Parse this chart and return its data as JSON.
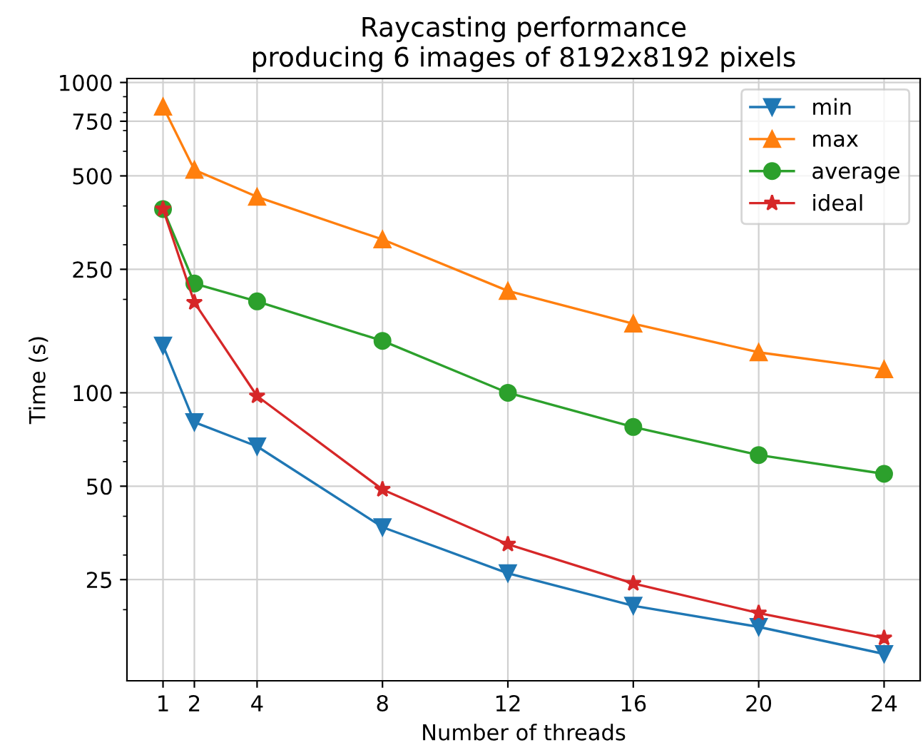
{
  "chart_data": {
    "type": "line",
    "title": "Raycasting performance\nproducing 6 images of 8192x8192 pixels",
    "xlabel": "Number of threads",
    "ylabel": "Time (s)",
    "x": [
      1,
      2,
      4,
      8,
      12,
      16,
      20,
      24
    ],
    "series": [
      {
        "name": "min",
        "color": "#1f77b4",
        "marker": "triangle_down",
        "values": [
          142,
          80.4,
          67.2,
          36.9,
          26.2,
          20.6,
          17.6,
          14.4
        ]
      },
      {
        "name": "max",
        "color": "#ff7f0e",
        "marker": "triangle",
        "values": [
          836,
          523,
          428,
          312,
          213,
          167,
          135,
          119
        ]
      },
      {
        "name": "average",
        "color": "#2ca02c",
        "marker": "circle",
        "values": [
          391,
          225,
          197,
          147,
          100,
          77.6,
          63,
          54.8
        ]
      },
      {
        "name": "ideal",
        "color": "#d62728",
        "marker": "star",
        "values": [
          391,
          195.5,
          97.6,
          48.8,
          32.5,
          24.3,
          19.5,
          16.2
        ]
      }
    ],
    "log": "y",
    "xlim": [
      -0.15,
      25.15
    ],
    "ylim": [
      11.8,
      1030
    ],
    "xticks": [
      1,
      2,
      4,
      8,
      12,
      16,
      20,
      24
    ],
    "yticks": [
      25,
      50,
      100,
      250,
      500,
      750,
      1000
    ],
    "grid": true,
    "legend": "top right"
  }
}
